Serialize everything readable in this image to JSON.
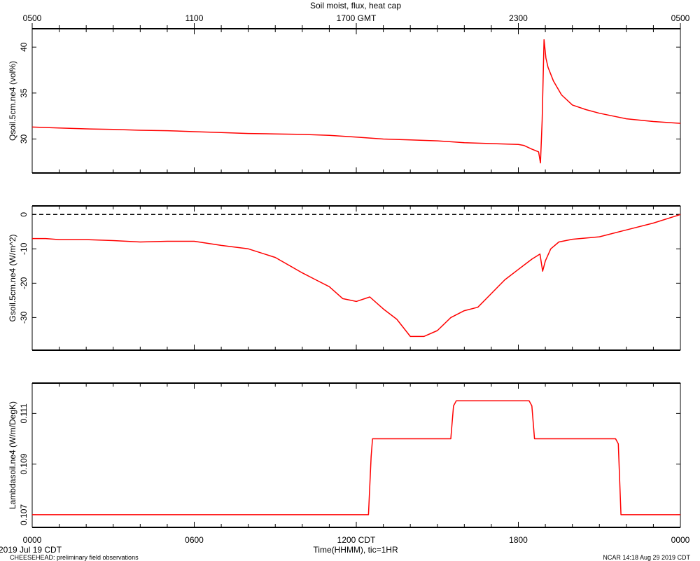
{
  "title": "Soil moist, flux, heat cap",
  "top_axis": {
    "ticks": [
      "0500",
      "1100",
      "1700 GMT",
      "2300",
      "0500"
    ]
  },
  "bottom_axis": {
    "ticks": [
      "0000",
      "0600",
      "1200 CDT",
      "1800",
      "0000"
    ],
    "label": "Time(HHMM), tic=1HR"
  },
  "date_label": "2019 Jul 19 CDT",
  "footer_left": "CHEESEHEAD: preliminary field observations",
  "footer_right": "NCAR 14:18 Aug 29 2019 CDT",
  "line_color": "#ff0000",
  "chart_data": [
    {
      "type": "line",
      "ylabel": "Qsoil.5cm.ne4 (vol%)",
      "x_unit": "hours after 0000 CDT",
      "xlim": [
        0,
        24
      ],
      "ylim": [
        26.3,
        42
      ],
      "yticks": [
        30,
        35,
        40
      ],
      "x": [
        0,
        1,
        2,
        3,
        4,
        5,
        6,
        7,
        8,
        9,
        10,
        11,
        12,
        13,
        14,
        15,
        16,
        17,
        18,
        18.2,
        18.5,
        18.75,
        18.82,
        18.88,
        18.95,
        19.02,
        19.1,
        19.3,
        19.6,
        20,
        20.5,
        21,
        22,
        23,
        24
      ],
      "series": [
        {
          "values": [
            31.3,
            31.2,
            31.1,
            31.05,
            30.95,
            30.9,
            30.8,
            30.7,
            30.6,
            30.55,
            30.5,
            30.4,
            30.2,
            30.0,
            29.9,
            29.8,
            29.6,
            29.5,
            29.4,
            29.3,
            28.9,
            28.6,
            27.4,
            32.0,
            40.8,
            38.8,
            37.8,
            36.3,
            34.8,
            33.7,
            33.2,
            32.8,
            32.2,
            31.9,
            31.7
          ]
        }
      ],
      "dashed_zero_line": false
    },
    {
      "type": "line",
      "ylabel": "Gsoil.5cm.ne4 (W/m^2)",
      "x_unit": "hours after 0000 CDT",
      "xlim": [
        0,
        24
      ],
      "ylim": [
        -39.5,
        2.5
      ],
      "yticks": [
        0,
        -10,
        -20,
        -30
      ],
      "x": [
        0,
        0.5,
        1,
        2,
        3,
        4,
        5,
        6,
        7,
        8,
        9,
        10,
        10.5,
        11,
        11.5,
        12,
        12.5,
        13,
        13.5,
        14,
        14.5,
        15,
        15.5,
        16,
        16.5,
        17,
        17.5,
        18,
        18.5,
        18.8,
        18.9,
        19.0,
        19.2,
        19.5,
        20,
        21,
        22,
        23,
        24
      ],
      "series": [
        {
          "values": [
            -7.0,
            -7.0,
            -7.3,
            -7.3,
            -7.6,
            -8.0,
            -7.8,
            -7.8,
            -9.0,
            -10.0,
            -12.5,
            -17.0,
            -19.0,
            -21.0,
            -24.5,
            -25.3,
            -24.0,
            -27.5,
            -30.5,
            -35.5,
            -35.5,
            -33.8,
            -30.0,
            -28.0,
            -27.0,
            -23.0,
            -19.0,
            -16.0,
            -13.0,
            -11.5,
            -16.5,
            -13.5,
            -10.0,
            -8.0,
            -7.2,
            -6.5,
            -4.5,
            -2.5,
            0.0
          ]
        }
      ],
      "dashed_zero_line": true
    },
    {
      "type": "line",
      "ylabel": "Lambdasoil.ne4 (W/m/DegK)",
      "x_unit": "hours after 0000 CDT",
      "xlim": [
        0,
        24
      ],
      "ylim": [
        0.1065,
        0.1122
      ],
      "yticks": [
        0.107,
        0.109,
        0.111
      ],
      "yticklabels": [
        "0.107",
        "0.109",
        "0.111"
      ],
      "x": [
        0,
        12.45,
        12.55,
        12.6,
        12.7,
        15.5,
        15.6,
        15.7,
        18.4,
        18.5,
        18.6,
        21.6,
        21.7,
        21.8,
        24
      ],
      "series": [
        {
          "values": [
            0.107,
            0.107,
            0.1093,
            0.11,
            0.11,
            0.11,
            0.1113,
            0.1115,
            0.1115,
            0.1113,
            0.11,
            0.11,
            0.1098,
            0.107,
            0.107
          ]
        }
      ],
      "dashed_zero_line": false
    }
  ]
}
